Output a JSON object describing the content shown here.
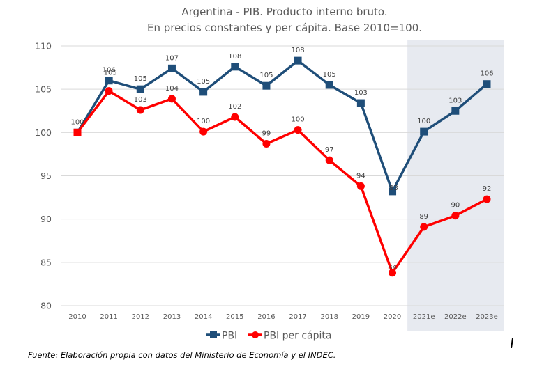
{
  "chart_data": {
    "type": "line",
    "title": "Argentina - PIB. Producto interno bruto.",
    "subtitle": "En precios constantes y per cápita. Base 2010=100.",
    "xlabel": "",
    "ylabel": "",
    "ylim": [
      80,
      110
    ],
    "yticks": [
      80,
      85,
      90,
      95,
      100,
      105,
      110
    ],
    "grid": true,
    "legend_position": "bottom",
    "categories": [
      "2010",
      "2011",
      "2012",
      "2013",
      "2014",
      "2015",
      "2016",
      "2017",
      "2018",
      "2019",
      "2020",
      "2021e",
      "2022e",
      "2023e"
    ],
    "shaded_region": {
      "from": "2021e",
      "to": "2023e",
      "meaning": "estimates",
      "color": "#E7EAF0"
    },
    "series": [
      {
        "name": "PBI",
        "color": "#1F4E79",
        "marker": "square",
        "values": [
          100,
          106,
          105,
          107.4,
          104.7,
          107.6,
          105.4,
          108.3,
          105.5,
          103.4,
          93.2,
          100.1,
          102.5,
          105.6
        ],
        "labels": [
          "100",
          "106",
          "105",
          "107",
          "105",
          "108",
          "105",
          "108",
          "105",
          "103",
          "93",
          "100",
          "103",
          "106"
        ]
      },
      {
        "name": "PBI per cápita",
        "color": "#FF0000",
        "marker": "circle",
        "values": [
          100,
          104.8,
          102.6,
          103.9,
          100.1,
          101.8,
          98.7,
          100.3,
          96.8,
          93.8,
          83.8,
          89.1,
          90.4,
          92.3
        ],
        "labels": [
          "100",
          "105",
          "103",
          "104",
          "100",
          "102",
          "99",
          "100",
          "97",
          "94",
          "84",
          "89",
          "90",
          "92"
        ]
      }
    ]
  },
  "footer": {
    "source": "Fuente: Elaboración propia con datos del Ministerio de Economía y el INDEC."
  }
}
